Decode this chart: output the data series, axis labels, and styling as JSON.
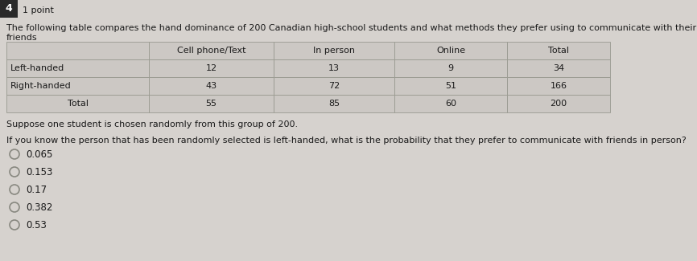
{
  "question_number": "4",
  "points": "1 point",
  "intro_text": "The following table compares the hand dominance of 200 Canadian high-school students and what methods they prefer using to communicate with their friends",
  "table_headers": [
    "",
    "Cell phone/Text",
    "In person",
    "Online",
    "Total"
  ],
  "table_rows": [
    [
      "Left-handed",
      "12",
      "13",
      "9",
      "34"
    ],
    [
      "Right-handed",
      "43",
      "72",
      "51",
      "166"
    ],
    [
      "Total",
      "55",
      "85",
      "60",
      "200"
    ]
  ],
  "suppose_text": "Suppose one student is chosen randomly from this group of 200.",
  "question_text": "If you know the person that has been randomly selected is left-handed, what is the probability that they prefer to communicate with friends in person?",
  "choices": [
    "0.065",
    "0.153",
    "0.17",
    "0.382",
    "0.53"
  ],
  "bg_color": "#d6d2ce",
  "table_line_color": "#999990",
  "text_color": "#1a1a1a",
  "number_box_color": "#2a2a2a",
  "table_cell_color": "#ccc8c4",
  "radio_color": "#888880"
}
